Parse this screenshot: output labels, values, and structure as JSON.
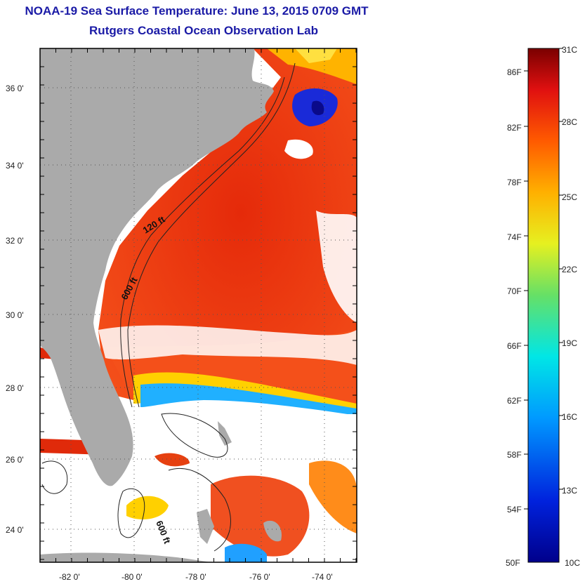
{
  "title": "NOAA-19 Sea Surface Temperature:  June 13, 2015 0709 GMT",
  "subtitle": "Rutgers Coastal Ocean Observation Lab",
  "map": {
    "lat_labels": [
      "36 0'",
      "34 0'",
      "32 0'",
      "30 0'",
      "28 0'",
      "26 0'",
      "24 0'"
    ],
    "lon_labels": [
      "-82 0'",
      "-80 0'",
      "-78 0'",
      "-76 0'",
      "-74 0'"
    ],
    "contour_labels": [
      "120 ft",
      "600 ft",
      "600 ft"
    ],
    "colors": {
      "land": "#aaaaaa",
      "warm_sst": "#ee3a10",
      "cloud": "#ffffff",
      "frame": "#000000"
    }
  },
  "colorbar": {
    "fahrenheit_labels": [
      "86F",
      "82F",
      "78F",
      "74F",
      "70F",
      "66F",
      "62F",
      "58F",
      "54F",
      "50F"
    ],
    "celsius_labels": [
      "31C",
      "28C",
      "25C",
      "22C",
      "19C",
      "16C",
      "13C",
      "10C"
    ],
    "range_celsius": [
      10,
      31
    ]
  }
}
